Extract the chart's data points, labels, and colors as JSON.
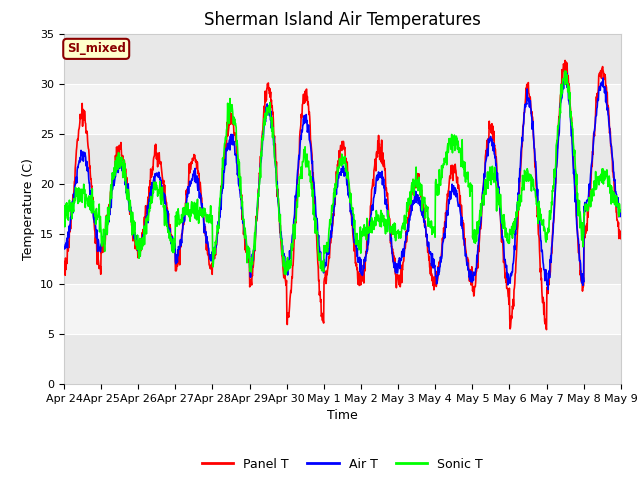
{
  "title": "Sherman Island Air Temperatures",
  "xlabel": "Time",
  "ylabel": "Temperature (C)",
  "ylim": [
    0,
    35
  ],
  "background_color": "#ffffff",
  "plot_bg_color": "#ffffff",
  "band_color_dark": "#e8e8e8",
  "band_color_light": "#f4f4f4",
  "tick_labels": [
    "Apr 24",
    "Apr 25",
    "Apr 26",
    "Apr 27",
    "Apr 28",
    "Apr 29",
    "Apr 30",
    "May 1",
    "May 2",
    "May 3",
    "May 4",
    "May 5",
    "May 6",
    "May 7",
    "May 8",
    "May 9"
  ],
  "legend_labels": [
    "Panel T",
    "Air T",
    "Sonic T"
  ],
  "legend_colors": [
    "red",
    "blue",
    "lime"
  ],
  "label_box_text": "SI_mixed",
  "label_box_facecolor": "#ffffcc",
  "label_box_edgecolor": "#8B0000",
  "label_box_textcolor": "#8B0000",
  "panel_t_color": "red",
  "air_t_color": "blue",
  "sonic_t_color": "lime",
  "linewidth": 1.2,
  "title_fontsize": 12,
  "axis_fontsize": 9,
  "tick_fontsize": 8,
  "panel_mins": [
    11.5,
    13.5,
    13.5,
    11.5,
    12.5,
    10.0,
    6.5,
    10.0,
    10.5,
    10.0,
    10.5,
    9.0,
    6.0,
    9.5,
    15.0
  ],
  "panel_maxs": [
    27.0,
    23.5,
    23.0,
    22.5,
    26.5,
    29.5,
    29.0,
    23.5,
    23.5,
    20.5,
    21.5,
    25.5,
    29.5,
    32.0,
    31.5
  ],
  "air_mins": [
    13.5,
    14.0,
    13.5,
    12.5,
    13.0,
    11.5,
    11.5,
    12.0,
    11.0,
    12.0,
    10.5,
    10.5,
    10.5,
    10.0,
    17.0
  ],
  "air_maxs": [
    23.0,
    22.0,
    21.0,
    21.0,
    24.5,
    27.5,
    26.5,
    21.5,
    21.0,
    18.5,
    19.5,
    24.5,
    28.5,
    30.5,
    30.0
  ],
  "sonic_mins": [
    17.0,
    14.0,
    13.5,
    16.5,
    13.0,
    11.5,
    11.5,
    13.5,
    15.0,
    15.0,
    19.5,
    14.5,
    15.0,
    15.0,
    17.5
  ],
  "sonic_maxs": [
    19.0,
    22.5,
    19.5,
    17.5,
    27.5,
    27.5,
    22.5,
    22.5,
    16.5,
    20.0,
    24.5,
    21.0,
    21.0,
    30.5,
    21.0
  ],
  "n_per_day": 96
}
